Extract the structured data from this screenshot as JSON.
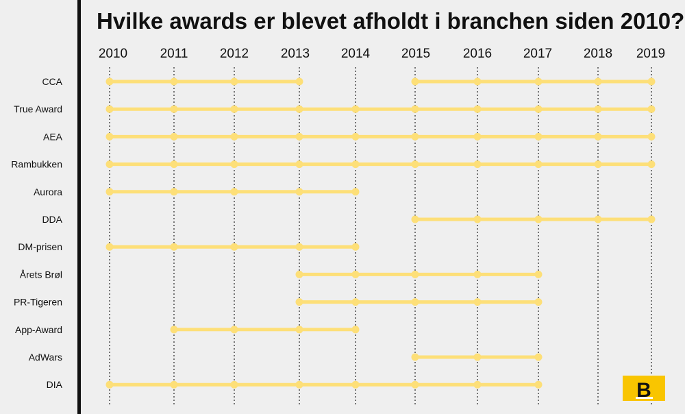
{
  "chart_data": {
    "type": "timeline",
    "title": "Hvilke awards er blevet afholdt i branchen siden 2010?",
    "years": [
      "2010",
      "2011",
      "2012",
      "2013",
      "2014",
      "2015",
      "2016",
      "2017",
      "2018",
      "2019"
    ],
    "series": [
      {
        "name": "CCA",
        "segments": [
          [
            2010,
            2013
          ],
          [
            2015,
            2019
          ]
        ]
      },
      {
        "name": "True Award",
        "segments": [
          [
            2010,
            2019
          ]
        ]
      },
      {
        "name": "AEA",
        "segments": [
          [
            2010,
            2019
          ]
        ]
      },
      {
        "name": "Rambukken",
        "segments": [
          [
            2010,
            2019
          ]
        ]
      },
      {
        "name": "Aurora",
        "segments": [
          [
            2010,
            2014
          ]
        ]
      },
      {
        "name": "DDA",
        "segments": [
          [
            2015,
            2019
          ]
        ]
      },
      {
        "name": "DM-prisen",
        "segments": [
          [
            2010,
            2014
          ]
        ]
      },
      {
        "name": "Årets Brøl",
        "segments": [
          [
            2013,
            2017
          ]
        ]
      },
      {
        "name": "PR-Tigeren",
        "segments": [
          [
            2013,
            2017
          ]
        ]
      },
      {
        "name": "App-Award",
        "segments": [
          [
            2011,
            2014
          ]
        ]
      },
      {
        "name": "AdWars",
        "segments": [
          [
            2015,
            2017
          ]
        ]
      },
      {
        "name": "DIA",
        "segments": [
          [
            2010,
            2017
          ]
        ]
      }
    ],
    "colors": {
      "line": "#fddf78",
      "grid": "#222222",
      "logo_bg": "#f9c500",
      "axis": "#111111"
    }
  },
  "logo": {
    "letter": "B"
  }
}
